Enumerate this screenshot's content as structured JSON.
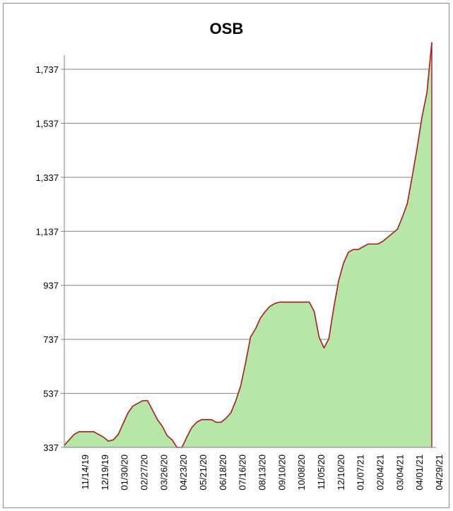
{
  "chart_data": {
    "type": "area",
    "title": "OSB",
    "xlabel": "",
    "ylabel": "",
    "ylim": [
      337,
      1837
    ],
    "yticks": [
      337,
      537,
      737,
      937,
      1137,
      1337,
      1537,
      1737
    ],
    "ytick_labels": [
      "337",
      "537",
      "737",
      "937",
      "1,137",
      "1,337",
      "1,537",
      "1,737"
    ],
    "xtick_labels": [
      "11/14/19",
      "12/19/19",
      "01/30/20",
      "02/27/20",
      "03/26/20",
      "04/23/20",
      "05/21/20",
      "06/18/20",
      "07/16/20",
      "08/13/20",
      "09/10/20",
      "10/08/20",
      "11/05/20",
      "12/10/20",
      "01/07/21",
      "02/04/21",
      "03/04/21",
      "04/01/21",
      "04/29/21"
    ],
    "grid": true,
    "colors": {
      "fill": "#b6e6a8",
      "line": "#b3161e",
      "grid": "#808080",
      "axis": "#808080"
    },
    "series": [
      {
        "values": [
          345,
          365,
          385,
          395,
          395,
          395,
          395,
          385,
          375,
          360,
          365,
          385,
          425,
          465,
          490,
          500,
          510,
          510,
          475,
          440,
          415,
          380,
          365,
          337,
          337,
          375,
          410,
          430,
          440,
          440,
          440,
          430,
          430,
          445,
          465,
          510,
          565,
          650,
          745,
          775,
          815,
          840,
          860,
          870,
          875,
          875,
          875,
          875,
          875,
          875,
          875,
          840,
          745,
          705,
          740,
          855,
          955,
          1020,
          1060,
          1070,
          1070,
          1080,
          1090,
          1090,
          1090,
          1100,
          1115,
          1130,
          1145,
          1190,
          1240,
          1340,
          1445,
          1560,
          1650,
          1837
        ]
      }
    ]
  }
}
